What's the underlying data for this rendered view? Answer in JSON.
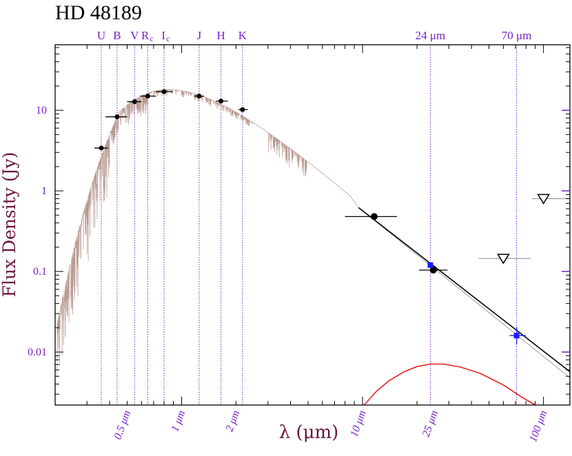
{
  "chart_data": {
    "type": "scatter",
    "title": "HD 48189",
    "xlabel": "λ (μm)",
    "ylabel": "Flux Density (Jy)",
    "x_scale": "log",
    "y_scale": "log",
    "xlim": [
      0.2,
      140
    ],
    "ylim": [
      0.0022,
      65
    ],
    "grid": false,
    "y_ticks": [
      {
        "value": 0.01,
        "label": "0.01"
      },
      {
        "value": 0.1,
        "label": "0.1"
      },
      {
        "value": 1,
        "label": "1"
      },
      {
        "value": 10,
        "label": "10"
      }
    ],
    "x_ticks": [
      {
        "value": 0.5,
        "label": "0.5 μm"
      },
      {
        "value": 1,
        "label": "1 μm"
      },
      {
        "value": 2,
        "label": "2 μm"
      },
      {
        "value": 10,
        "label": "10 μm"
      },
      {
        "value": 25,
        "label": "25 μm"
      },
      {
        "value": 100,
        "label": "100 μm"
      }
    ],
    "bands": [
      {
        "name": "U",
        "sub": "",
        "wavelength": 0.36
      },
      {
        "name": "B",
        "sub": "",
        "wavelength": 0.44
      },
      {
        "name": "V",
        "sub": "",
        "wavelength": 0.55
      },
      {
        "name": "R",
        "sub": "c",
        "wavelength": 0.65
      },
      {
        "name": "I",
        "sub": "c",
        "wavelength": 0.8
      },
      {
        "name": "J",
        "sub": "",
        "wavelength": 1.25
      },
      {
        "name": "H",
        "sub": "",
        "wavelength": 1.65
      },
      {
        "name": "K",
        "sub": "",
        "wavelength": 2.17
      },
      {
        "name": "24 μm",
        "sub": "",
        "wavelength": 23.7
      },
      {
        "name": "70 μm",
        "sub": "",
        "wavelength": 71
      }
    ],
    "photometry_black": [
      {
        "x": 0.36,
        "y": 3.4,
        "xerr": [
          0.33,
          0.39
        ]
      },
      {
        "x": 0.44,
        "y": 8.3,
        "xerr": [
          0.38,
          0.5
        ]
      },
      {
        "x": 0.55,
        "y": 12.8,
        "xerr": [
          0.5,
          0.6
        ]
      },
      {
        "x": 0.65,
        "y": 15.0,
        "xerr": [
          0.59,
          0.72
        ]
      },
      {
        "x": 0.8,
        "y": 17.0,
        "xerr": [
          0.72,
          0.89
        ]
      },
      {
        "x": 1.25,
        "y": 15.0,
        "xerr": [
          1.17,
          1.33
        ]
      },
      {
        "x": 1.65,
        "y": 13.0,
        "xerr": [
          1.55,
          1.8
        ]
      },
      {
        "x": 2.17,
        "y": 10.2,
        "xerr": [
          2.06,
          2.32
        ]
      },
      {
        "x": 11.6,
        "y": 0.48,
        "xerr": [
          8.0,
          15.5
        ]
      },
      {
        "x": 24.6,
        "y": 0.104,
        "xerr": [
          20.5,
          29.5
        ]
      }
    ],
    "photometry_blue": [
      {
        "x": 23.7,
        "y": 0.12,
        "xerr": [
          23.0,
          24.4
        ]
      },
      {
        "x": 71,
        "y": 0.016,
        "xerr": [
          65,
          80
        ],
        "yerr": [
          0.0125,
          0.0205
        ]
      }
    ],
    "upper_limits": [
      {
        "x": 60,
        "y": 0.145,
        "xerr": [
          44,
          85
        ]
      },
      {
        "x": 100,
        "y": 0.8,
        "xerr": [
          86,
          140
        ]
      }
    ],
    "photosphere_model": [
      [
        9.5,
        0.62
      ],
      [
        140,
        0.0048
      ]
    ],
    "total_fit": [
      [
        9.5,
        0.62
      ],
      [
        140,
        0.0057
      ]
    ],
    "disk_blackbody": [
      [
        10.2,
        0.0022
      ],
      [
        12,
        0.0033
      ],
      [
        14,
        0.0044
      ],
      [
        17,
        0.0057
      ],
      [
        20,
        0.0066
      ],
      [
        23.7,
        0.0071
      ],
      [
        28,
        0.0071
      ],
      [
        35,
        0.0065
      ],
      [
        45,
        0.0054
      ],
      [
        60,
        0.0039
      ],
      [
        75,
        0.0028
      ],
      [
        90,
        0.0022
      ]
    ]
  }
}
